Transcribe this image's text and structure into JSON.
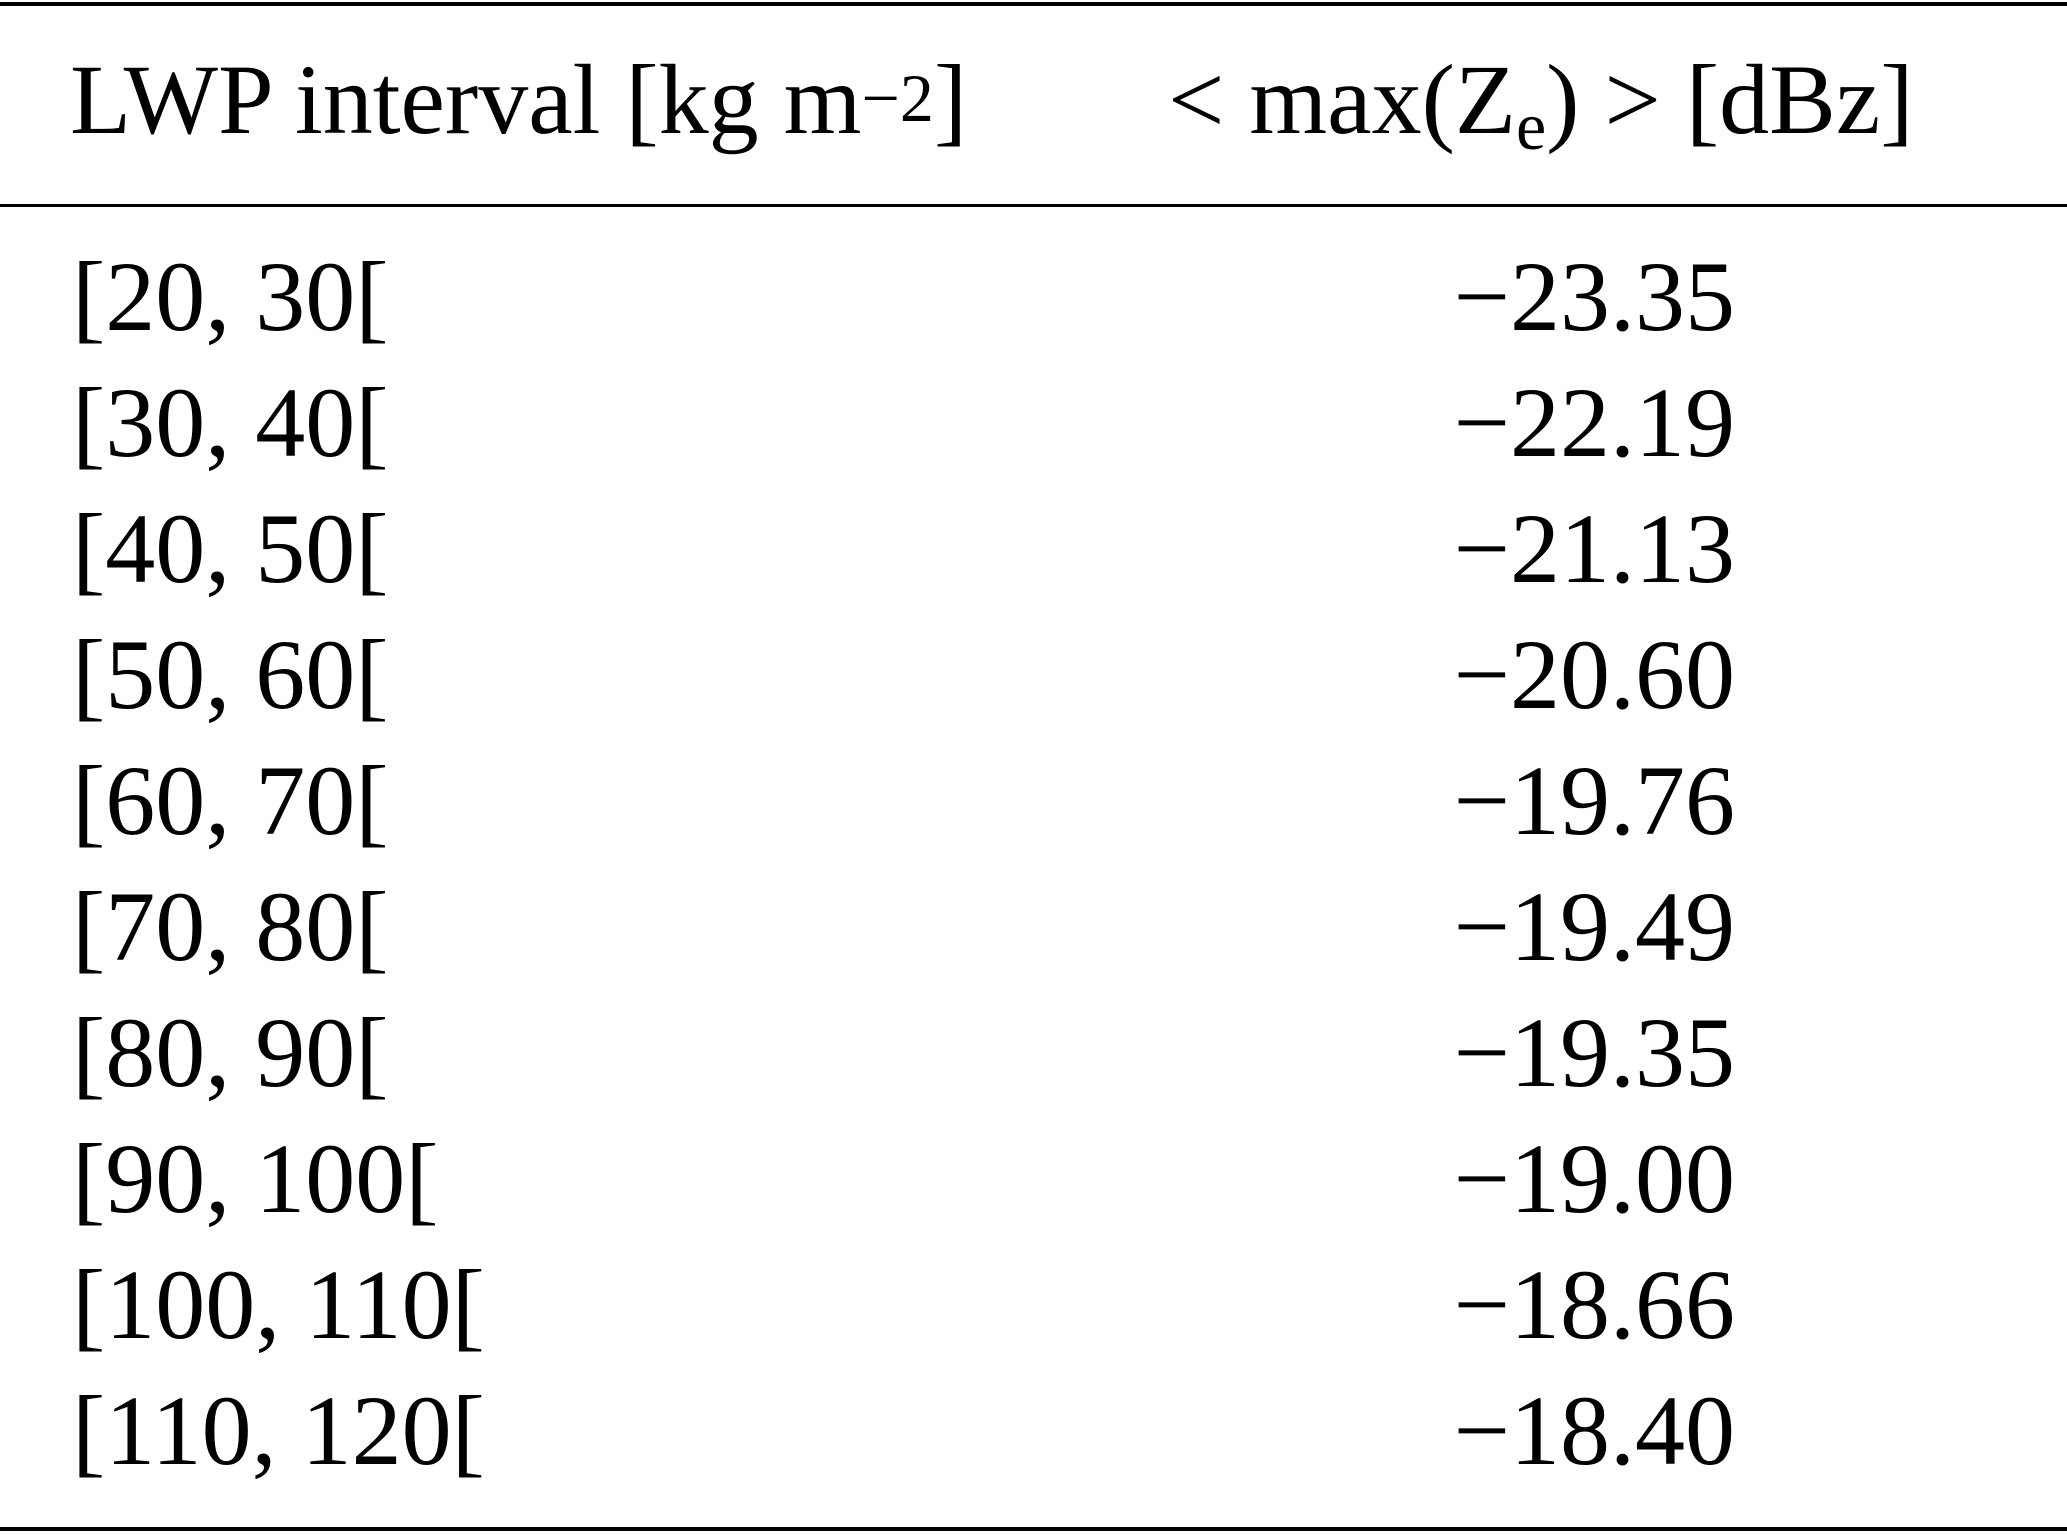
{
  "table": {
    "headers": {
      "col1": {
        "text": "LWP interval [kg m",
        "sup": "−2",
        "close": "]"
      },
      "col2": {
        "prefix": "< max(Z",
        "sub": "e",
        "suffix": ") > [dBz]"
      }
    },
    "rows": [
      {
        "interval": "[20, 30[",
        "value": "−23.35"
      },
      {
        "interval": "[30, 40[",
        "value": "−22.19"
      },
      {
        "interval": "[40, 50[",
        "value": "−21.13"
      },
      {
        "interval": "[50, 60[",
        "value": "−20.60"
      },
      {
        "interval": "[60, 70[",
        "value": "−19.76"
      },
      {
        "interval": "[70, 80[",
        "value": "−19.49"
      },
      {
        "interval": "[80, 90[",
        "value": "−19.35"
      },
      {
        "interval": "[90, 100[",
        "value": "−19.00"
      },
      {
        "interval": "[100, 110[",
        "value": "−18.66"
      },
      {
        "interval": "[110, 120[",
        "value": "−18.40"
      }
    ]
  }
}
